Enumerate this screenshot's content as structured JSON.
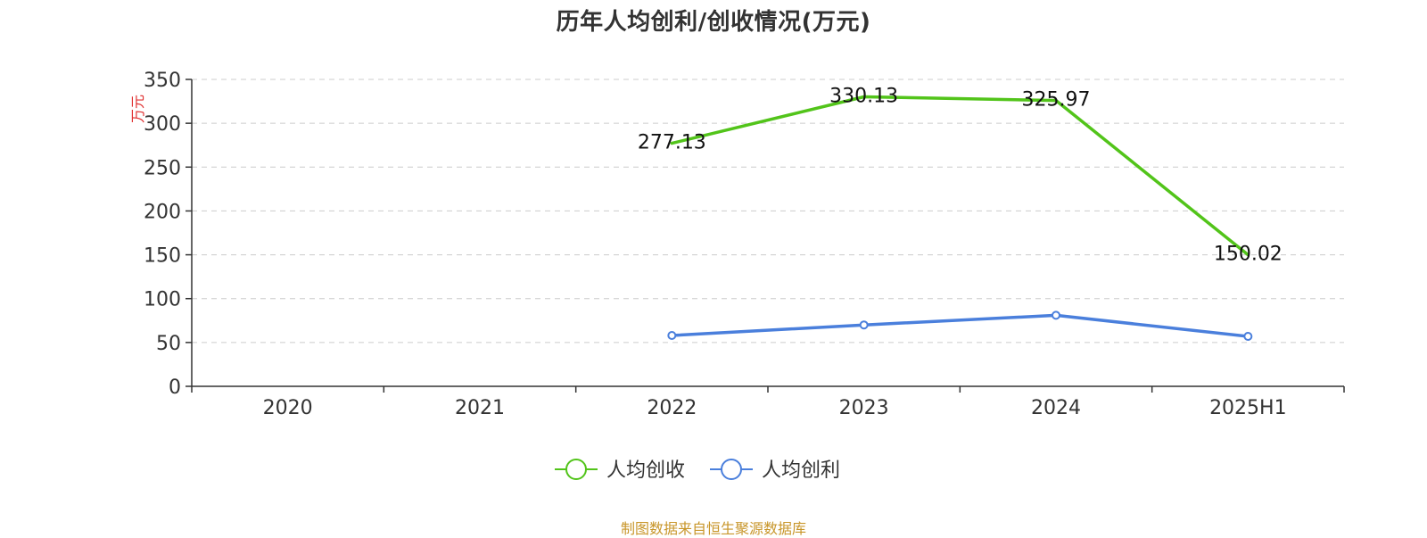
{
  "chart_data": {
    "type": "line",
    "title": "历年人均创利/创收情况(万元)",
    "ylabel": "万元",
    "categories": [
      "2020",
      "2021",
      "2022",
      "2023",
      "2024",
      "2025H1"
    ],
    "ylim": [
      0,
      350
    ],
    "yticks": [
      0,
      50,
      100,
      150,
      200,
      250,
      300,
      350
    ],
    "grid": true,
    "legend_position": "bottom",
    "series": [
      {
        "name": "人均创收",
        "color": "#52c41a",
        "values": [
          null,
          null,
          277.13,
          330.13,
          325.97,
          150.02
        ],
        "labels": [
          "",
          "",
          "277.13",
          "330.13",
          "325.97",
          "150.02"
        ],
        "markers_visible": false
      },
      {
        "name": "人均创利",
        "color": "#4a7fdc",
        "values": [
          null,
          null,
          58,
          70,
          81,
          57
        ],
        "labels": [
          "",
          "",
          "",
          "",
          "",
          ""
        ],
        "markers_visible": true
      }
    ],
    "source_note": "制图数据来自恒生聚源数据库",
    "colors": {
      "axis": "#333333",
      "grid": "#cccccc",
      "unit_label": "#e03030",
      "source_note": "#c8962a"
    }
  }
}
